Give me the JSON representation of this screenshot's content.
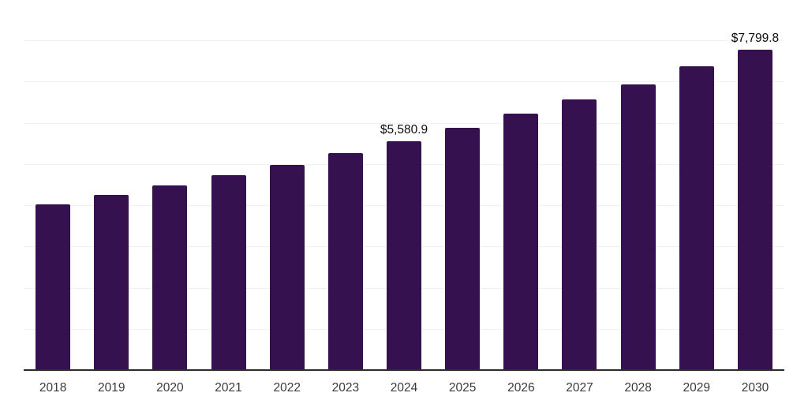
{
  "page": {
    "background_color": "#ffffff"
  },
  "chart_data": {
    "type": "bar",
    "title": "",
    "xlabel": "",
    "ylabel": "",
    "categories": [
      "2018",
      "2019",
      "2020",
      "2021",
      "2022",
      "2023",
      "2024",
      "2025",
      "2026",
      "2027",
      "2028",
      "2029",
      "2030"
    ],
    "values": [
      4050,
      4270,
      4500,
      4755,
      5005,
      5290,
      5580.9,
      5900,
      6240,
      6585,
      6960,
      7390,
      7799.8
    ],
    "data_labels": [
      "",
      "",
      "",
      "",
      "",
      "",
      "$5,580.9",
      "",
      "",
      "",
      "",
      "",
      "$7,799.8"
    ],
    "ylim": [
      0,
      9000
    ],
    "gridline_interval": 1000,
    "grid_visible": true,
    "legend_position": "none",
    "y_axis_labels_visible": false,
    "bar_color": "#35124f",
    "gridline_color": "#f2f2f2",
    "axis_line_color": "#2d2d2d",
    "tick_label_color": "#3a3a3a",
    "data_label_color": "#0d0d0d"
  }
}
